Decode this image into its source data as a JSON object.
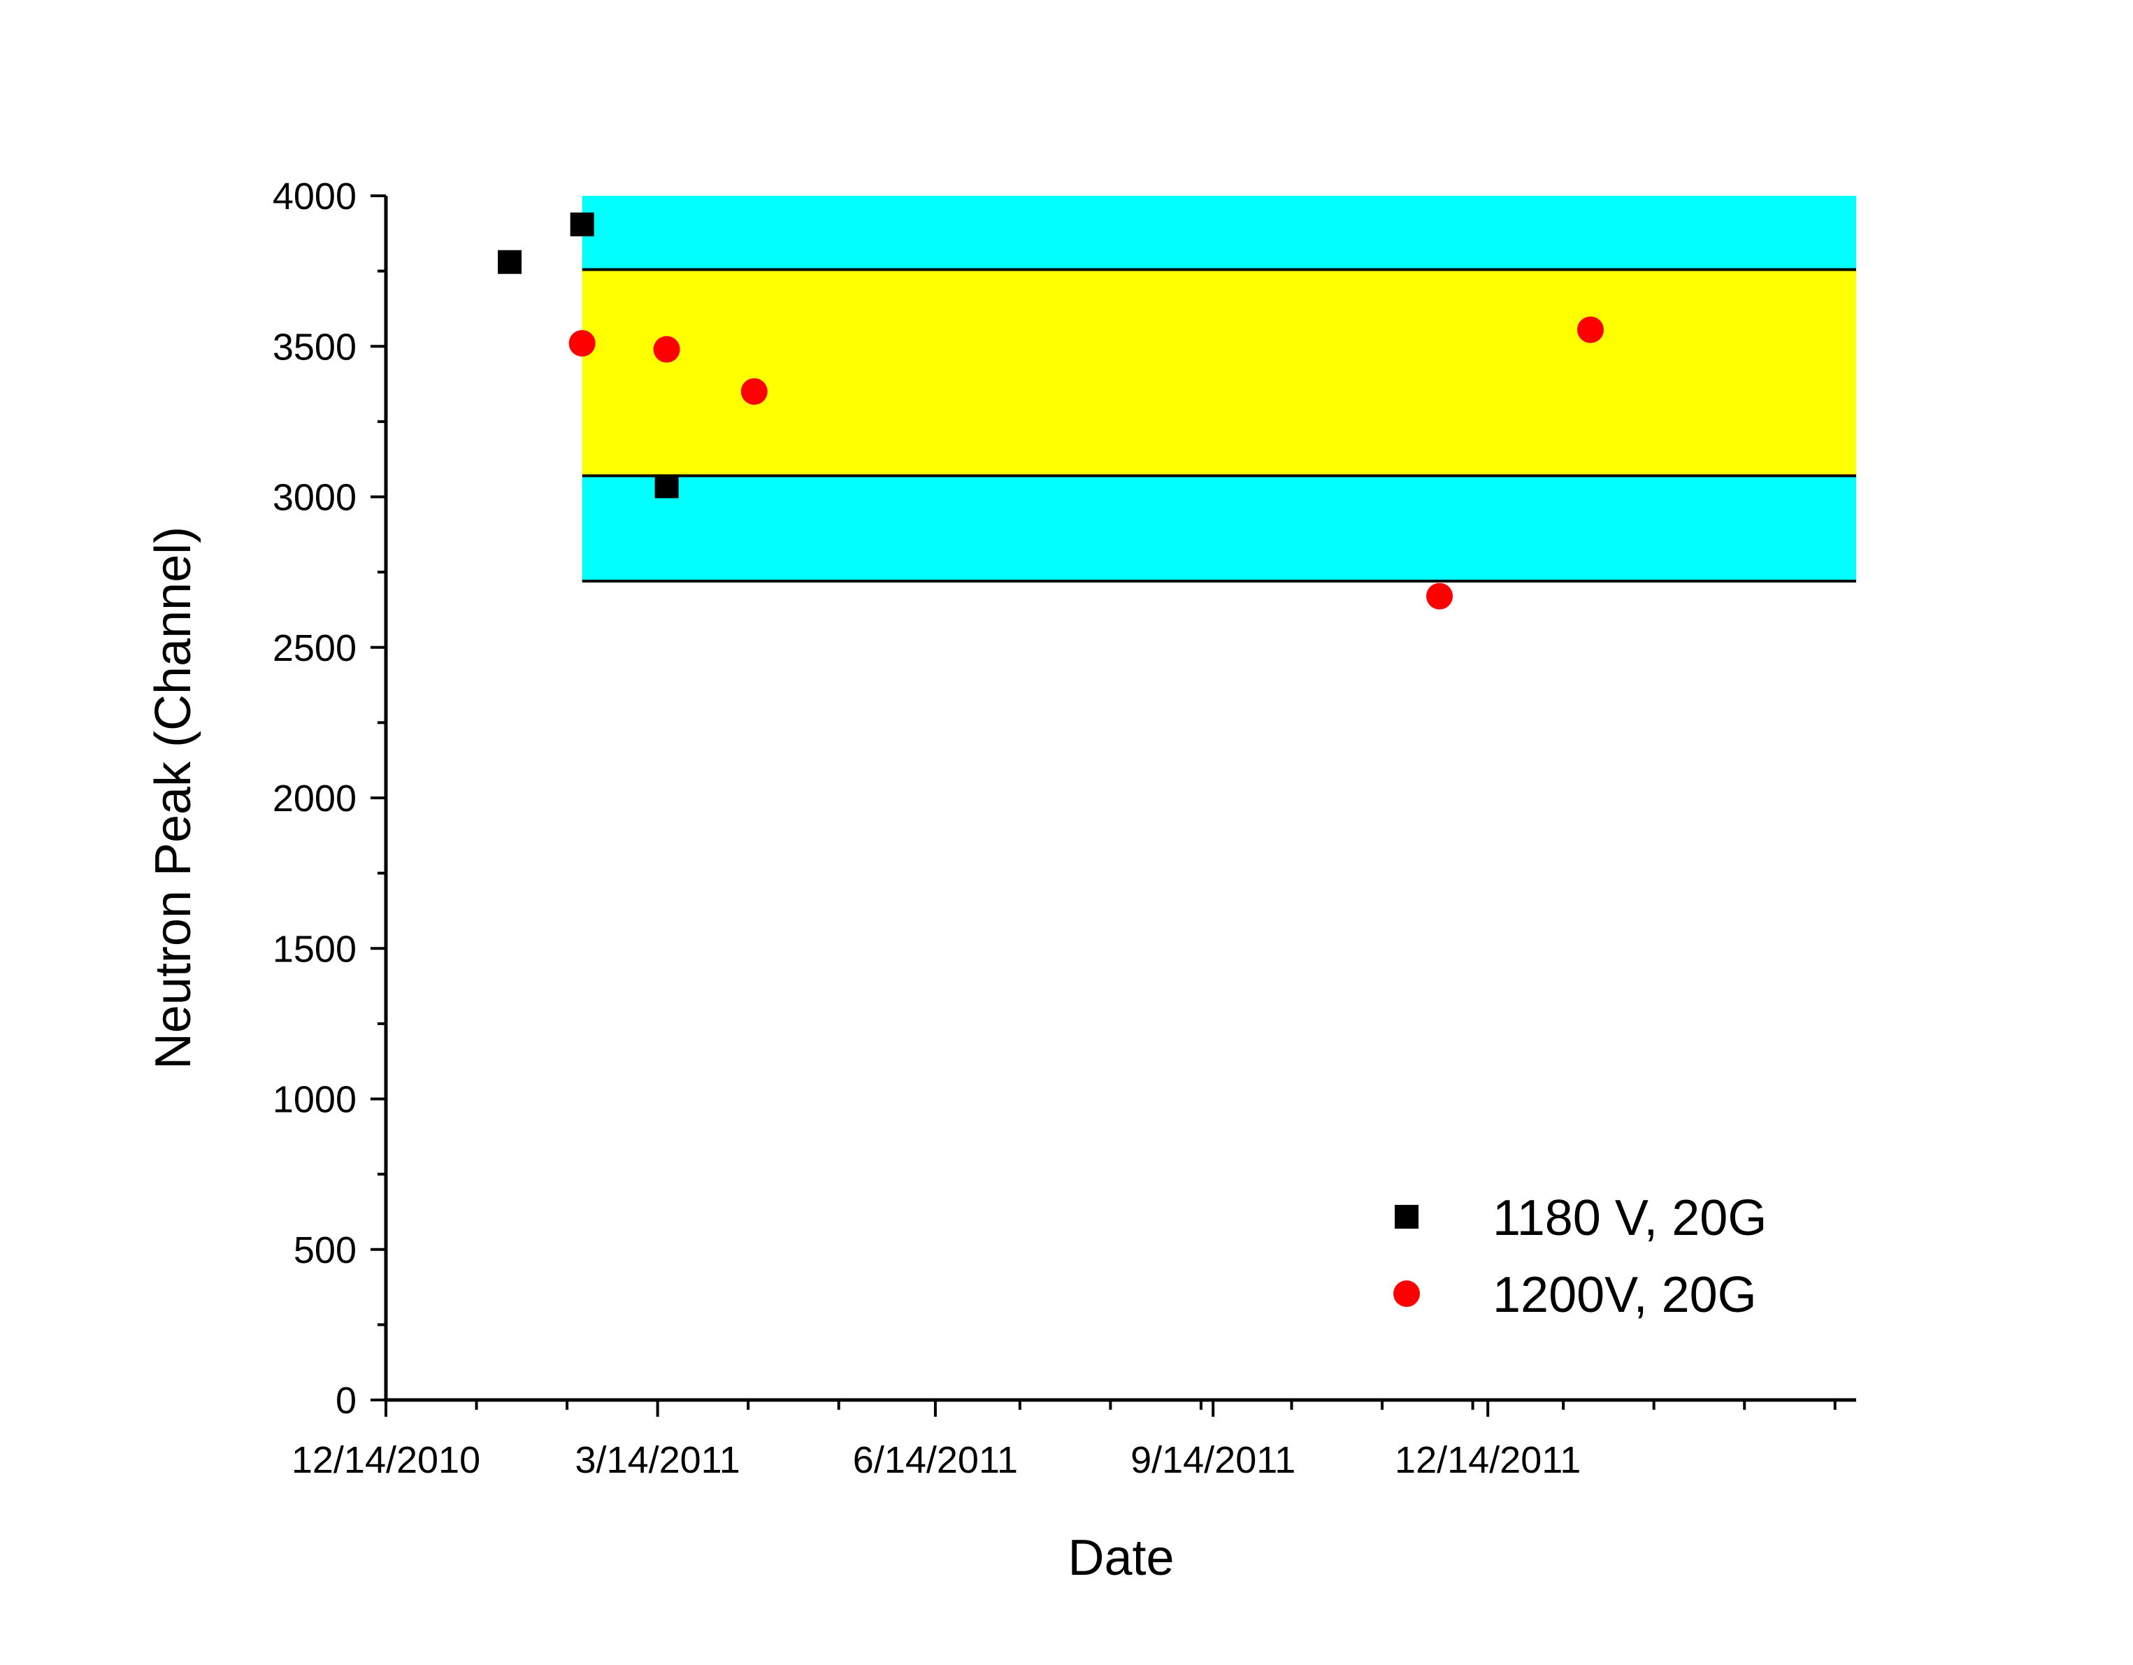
{
  "chart_data": {
    "type": "scatter",
    "title": "",
    "xlabel": "Date",
    "ylabel": "Neutron Peak (Channel)",
    "xlim": [
      "12/14/2010",
      "4/14/2012"
    ],
    "ylim": [
      0,
      4000
    ],
    "x_ticks": [
      "12/14/2010",
      "3/14/2011",
      "6/14/2011",
      "9/14/2011",
      "12/14/2011"
    ],
    "y_ticks": [
      "0",
      "500",
      "1000",
      "1500",
      "2000",
      "2500",
      "3000",
      "3500",
      "4000"
    ],
    "grid": false,
    "legend_position": "bottom-right",
    "bands": [
      {
        "from_date": "2/17/2011",
        "to_date": "4/14/2012",
        "y_range": [
          2720,
          4000
        ],
        "color": "#00ffff"
      },
      {
        "from_date": "2/17/2011",
        "to_date": "4/14/2012",
        "y_range": [
          3070,
          3755
        ],
        "color": "#ffff00"
      }
    ],
    "reference_lines": [
      3755,
      3070,
      2720
    ],
    "series": [
      {
        "name": "1180 V, 20G",
        "marker": "square",
        "color": "#000000",
        "points": [
          {
            "x": "1/24/2011",
            "y": 3780
          },
          {
            "x": "2/17/2011",
            "y": 3905
          },
          {
            "x": "3/17/2011",
            "y": 3035
          }
        ]
      },
      {
        "name": "1200V, 20G",
        "marker": "circle",
        "color": "#ff0000",
        "points": [
          {
            "x": "2/17/2011",
            "y": 3510
          },
          {
            "x": "3/17/2011",
            "y": 3490
          },
          {
            "x": "4/15/2011",
            "y": 3350
          },
          {
            "x": "11/28/2011",
            "y": 2670
          },
          {
            "x": "1/17/2012",
            "y": 3555
          }
        ]
      }
    ]
  }
}
